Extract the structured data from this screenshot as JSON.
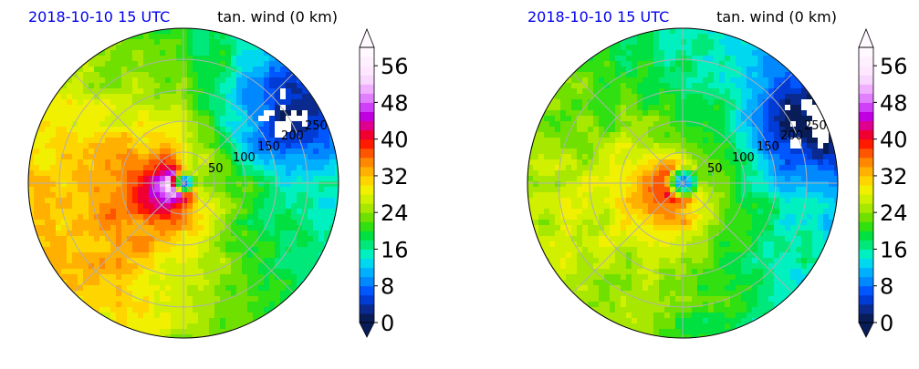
{
  "chart_data": [
    {
      "type": "heatmap",
      "projection": "polar",
      "title_left": "2018-10-10 15 UTC",
      "title_right": "tan. wind (0 km)",
      "radial_ticks": [
        "50",
        "100",
        "150",
        "200",
        "250"
      ],
      "rmax": 250,
      "colorbar": {
        "ticks": [
          "0",
          "8",
          "16",
          "24",
          "32",
          "40",
          "48",
          "56"
        ],
        "range": [
          0,
          60
        ],
        "step": 2,
        "extend": "both",
        "colors": [
          "#081d58",
          "#0a2a8f",
          "#003bd6",
          "#0057ff",
          "#0088ff",
          "#00b0ff",
          "#00d8f0",
          "#00f0c0",
          "#00e87a",
          "#00e040",
          "#30e010",
          "#70e000",
          "#a8e800",
          "#d0f000",
          "#f0f000",
          "#ffd500",
          "#ffb000",
          "#ff8800",
          "#ff5500",
          "#ff1a00",
          "#f00030",
          "#e00090",
          "#c000e0",
          "#d040f8",
          "#e080ff",
          "#f0b0ff",
          "#f8d8ff",
          "#ffe8ff",
          "#fff0ff",
          "#fff8ff"
        ]
      },
      "structure": {
        "max_wind": 44,
        "rmw": 22,
        "max_azimuth_deg": 200,
        "azimuthal_asymmetry": 0.45,
        "background_wind": 13,
        "background_gradient_deg": 200,
        "background_gradient_strength": 5,
        "eye_radius": 5,
        "decay": 1.6
      },
      "land_patch": {
        "center_azimuth_deg": 35,
        "center_radius": 200,
        "extent": 90
      }
    },
    {
      "type": "heatmap",
      "projection": "polar",
      "title_left": "2018-10-10 15 UTC",
      "title_right": "tan. wind (0 km)",
      "radial_ticks": [
        "50",
        "100",
        "150",
        "200",
        "250"
      ],
      "rmax": 250,
      "colorbar": {
        "ticks": [
          "0",
          "8",
          "16",
          "24",
          "32",
          "40",
          "48",
          "56"
        ],
        "range": [
          0,
          60
        ],
        "step": 2,
        "extend": "both"
      },
      "structure": {
        "max_wind": 34,
        "rmw": 30,
        "max_azimuth_deg": 210,
        "azimuthal_asymmetry": 0.3,
        "background_wind": 13,
        "background_gradient_deg": 200,
        "background_gradient_strength": 6,
        "eye_radius": 6,
        "decay": 1.2
      },
      "land_patch": {
        "center_azimuth_deg": 25,
        "center_radius": 215,
        "extent": 95
      }
    }
  ]
}
